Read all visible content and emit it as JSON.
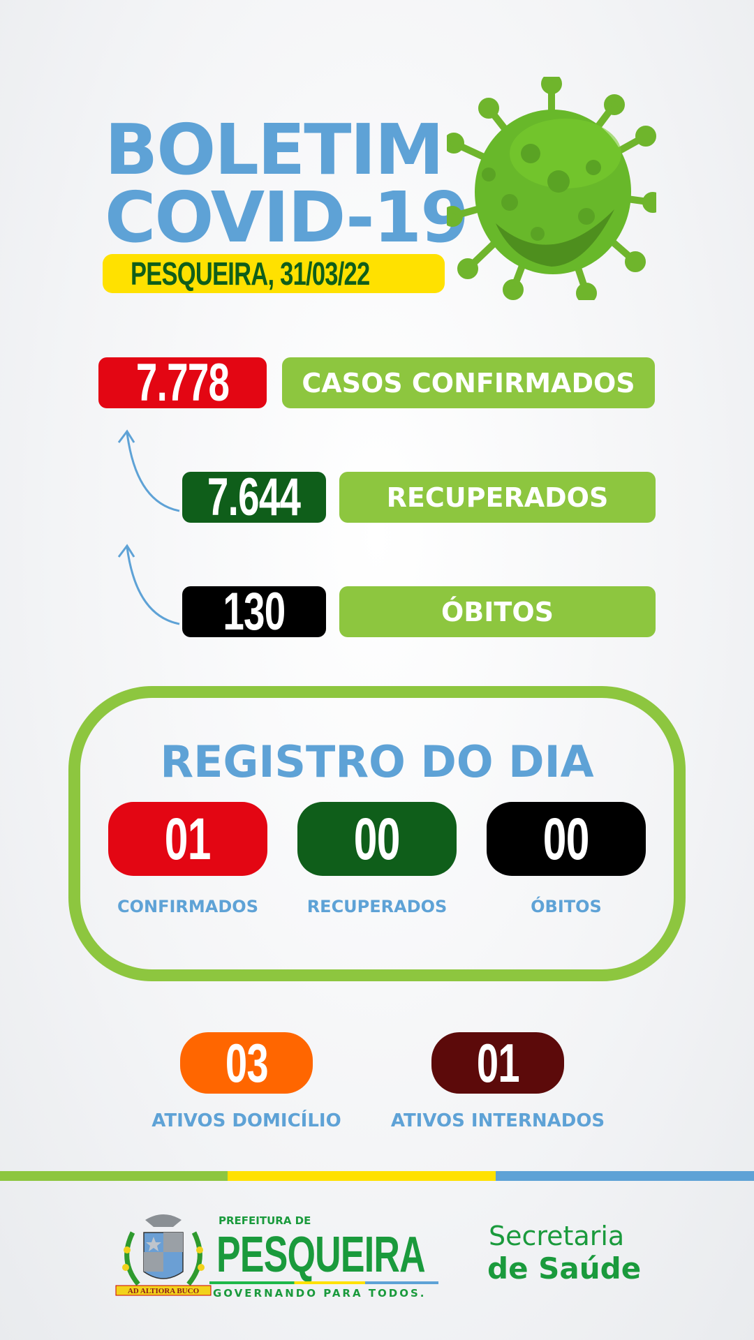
{
  "header": {
    "title_line1": "BOLETIM",
    "title_line2": "COVID-19",
    "location_date": "PESQUEIRA, 31/03/22"
  },
  "totals": [
    {
      "value": "7.778",
      "label": "CASOS CONFIRMADOS",
      "color": "#e30613"
    },
    {
      "value": "7.644",
      "label": "RECUPERADOS",
      "color": "#0f5e1a"
    },
    {
      "value": "130",
      "label": "ÓBITOS",
      "color": "#000000"
    }
  ],
  "daily": {
    "title": "REGISTRO DO DIA",
    "items": [
      {
        "value": "01",
        "label": "CONFIRMADOS",
        "color": "#e30613"
      },
      {
        "value": "00",
        "label": "RECUPERADOS",
        "color": "#0f5e1a"
      },
      {
        "value": "00",
        "label": "ÓBITOS",
        "color": "#000000"
      }
    ]
  },
  "active": [
    {
      "value": "03",
      "label": "ATIVOS DOMICÍLIO",
      "color": "#ff6600"
    },
    {
      "value": "01",
      "label": "ATIVOS INTERNADOS",
      "color": "#5c0a0a"
    }
  ],
  "footer": {
    "prefeitura_de": "PREFEITURA DE",
    "city": "PESQUEIRA",
    "slogan": "GOVERNANDO PARA TODOS.",
    "secretaria_line1": "Secretaria",
    "secretaria_line2": "de Saúde",
    "crest_text": "AD ALTIORA BUCO"
  },
  "colors": {
    "blue": "#5ea2d6",
    "lime": "#8dc63f",
    "yellow": "#ffe100",
    "dark_green": "#0f5e1a",
    "logo_green": "#1a9a3c"
  }
}
